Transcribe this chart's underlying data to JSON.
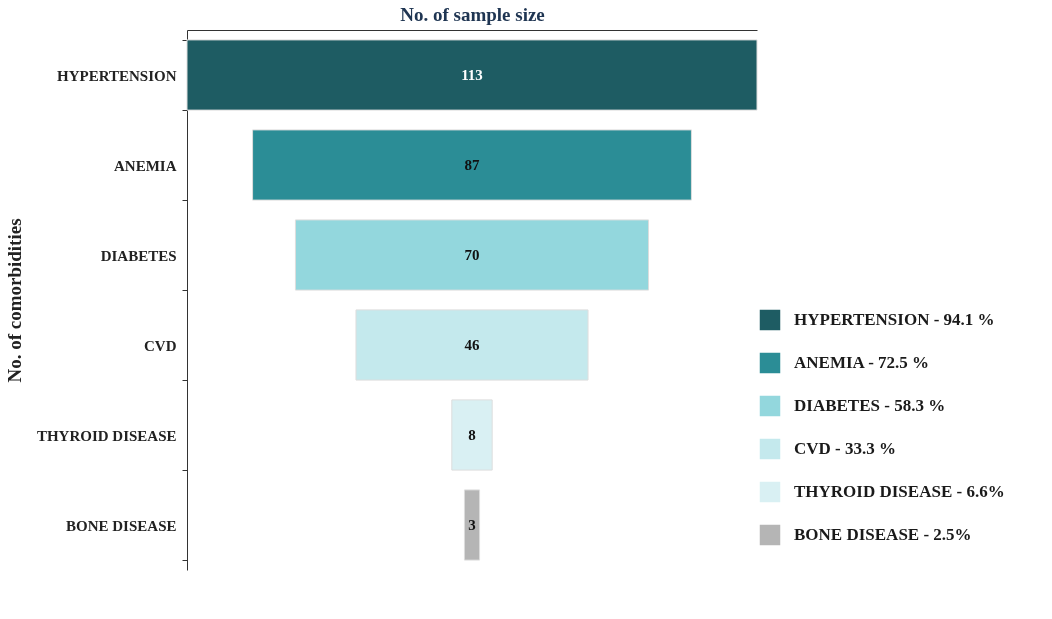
{
  "chart_data": {
    "type": "other",
    "xlabel": "No. of sample size",
    "ylabel": "No. of comorbidities",
    "categories": [
      "HYPERTENSION",
      "ANEMIA",
      "DIABETES",
      "CVD",
      "THYROID DISEASE",
      "BONE DISEASE"
    ],
    "values": [
      113,
      87,
      70,
      46,
      8,
      3
    ],
    "colors": [
      "#1e5c63",
      "#2b8d96",
      "#93d7dd",
      "#c4e9ed",
      "#d9f0f3",
      "#b5b5b5"
    ],
    "data_labels": true,
    "annotations": [
      "HYPERTENSION - 94.1 %",
      "ANEMIA  - 72.5 %",
      "DIABETES - 58.3 %",
      "CVD - 33.3 %",
      "THYROID DISEASE - 6.6%",
      "BONE DISEASE - 2.5%"
    ]
  }
}
